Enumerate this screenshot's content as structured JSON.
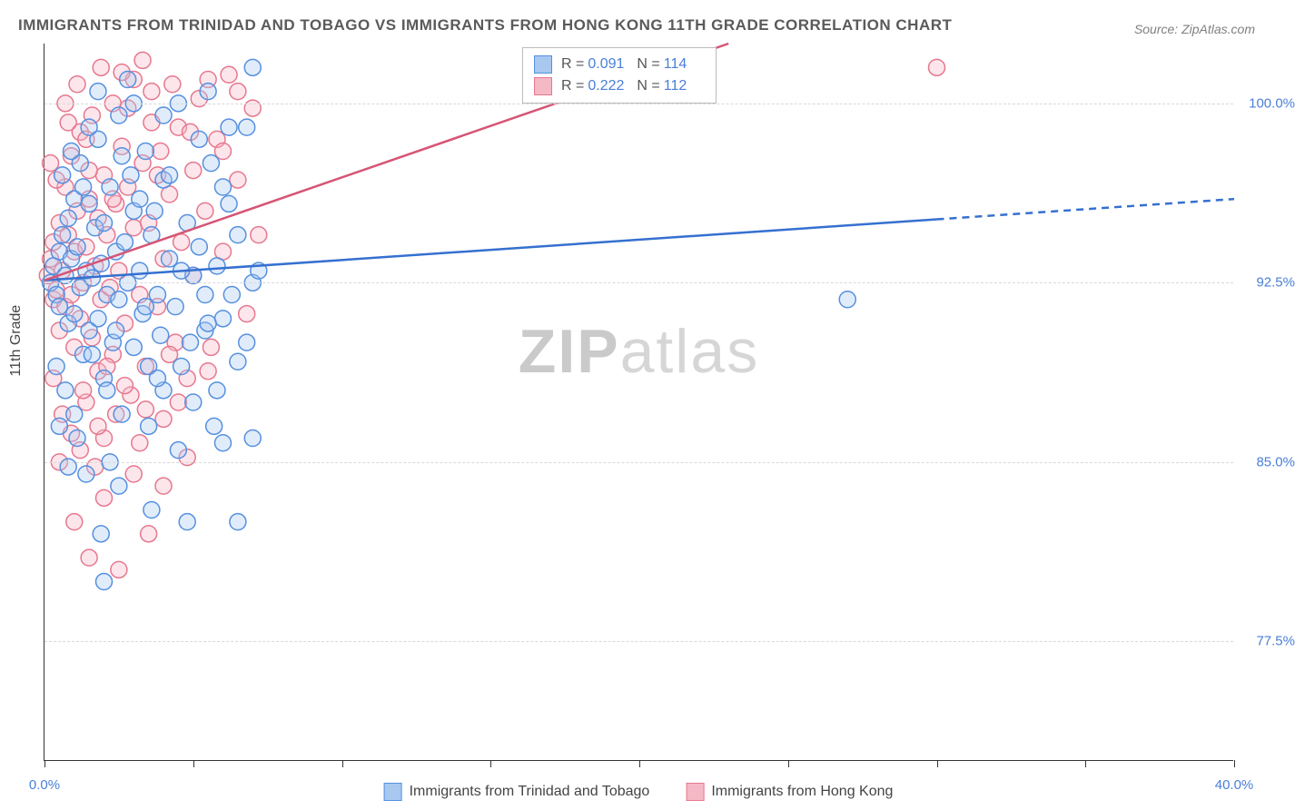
{
  "title": "IMMIGRANTS FROM TRINIDAD AND TOBAGO VS IMMIGRANTS FROM HONG KONG 11TH GRADE CORRELATION CHART",
  "source": "Source: ZipAtlas.com",
  "watermark_a": "ZIP",
  "watermark_b": "atlas",
  "ylabel": "11th Grade",
  "chart": {
    "type": "scatter",
    "background_color": "#ffffff",
    "grid_color": "#d8d8d8",
    "axis_color": "#333333",
    "label_color": "#4a7fd8",
    "title_color": "#5a5a5a",
    "title_fontsize": 17,
    "label_fontsize": 16,
    "tick_fontsize": 15,
    "xlim": [
      0,
      40
    ],
    "ylim": [
      72.5,
      102.5
    ],
    "xticks": [
      0,
      5,
      10,
      15,
      20,
      25,
      30,
      35,
      40
    ],
    "xtick_labels": {
      "0": "0.0%",
      "40": "40.0%"
    },
    "yticks": [
      77.5,
      85.0,
      92.5,
      100.0
    ],
    "ytick_labels": [
      "77.5%",
      "85.0%",
      "92.5%",
      "100.0%"
    ],
    "marker_radius": 9,
    "marker_stroke_width": 1.5,
    "marker_fill_opacity": 0.35,
    "series": [
      {
        "name": "Immigrants from Trinidad and Tobago",
        "color_stroke": "#5590e0",
        "color_fill": "#a8c8f0",
        "R": "0.091",
        "N": "114",
        "trend": {
          "x1": 0,
          "y1": 92.6,
          "x2": 40,
          "y2": 96.0,
          "solid_until_x": 30,
          "color": "#3570d0",
          "width": 2.5
        },
        "points": [
          [
            0.2,
            92.5
          ],
          [
            0.3,
            93.2
          ],
          [
            0.4,
            92.0
          ],
          [
            0.5,
            93.8
          ],
          [
            0.5,
            91.5
          ],
          [
            0.6,
            94.5
          ],
          [
            0.7,
            92.8
          ],
          [
            0.8,
            95.2
          ],
          [
            0.8,
            90.8
          ],
          [
            0.9,
            93.5
          ],
          [
            1.0,
            96.0
          ],
          [
            1.0,
            91.2
          ],
          [
            1.1,
            94.0
          ],
          [
            1.2,
            92.3
          ],
          [
            1.2,
            97.5
          ],
          [
            1.3,
            89.5
          ],
          [
            1.4,
            93.0
          ],
          [
            1.5,
            95.8
          ],
          [
            1.5,
            90.5
          ],
          [
            1.6,
            92.7
          ],
          [
            1.7,
            94.8
          ],
          [
            1.8,
            91.0
          ],
          [
            1.8,
            98.5
          ],
          [
            1.9,
            93.3
          ],
          [
            2.0,
            88.5
          ],
          [
            2.0,
            95.0
          ],
          [
            2.1,
            92.0
          ],
          [
            2.2,
            96.5
          ],
          [
            2.3,
            90.0
          ],
          [
            2.4,
            93.8
          ],
          [
            2.5,
            99.5
          ],
          [
            2.5,
            91.8
          ],
          [
            2.6,
            87.0
          ],
          [
            2.7,
            94.2
          ],
          [
            2.8,
            92.5
          ],
          [
            2.9,
            97.0
          ],
          [
            3.0,
            89.8
          ],
          [
            3.0,
            95.5
          ],
          [
            3.2,
            93.0
          ],
          [
            3.3,
            91.2
          ],
          [
            3.4,
            98.0
          ],
          [
            3.5,
            86.5
          ],
          [
            3.6,
            94.5
          ],
          [
            3.8,
            92.0
          ],
          [
            3.9,
            90.3
          ],
          [
            4.0,
            96.8
          ],
          [
            4.0,
            88.0
          ],
          [
            4.2,
            93.5
          ],
          [
            4.4,
            91.5
          ],
          [
            4.5,
            100.0
          ],
          [
            4.6,
            89.0
          ],
          [
            4.8,
            95.0
          ],
          [
            5.0,
            92.8
          ],
          [
            5.0,
            87.5
          ],
          [
            5.2,
            94.0
          ],
          [
            5.4,
            90.5
          ],
          [
            5.6,
            97.5
          ],
          [
            5.8,
            93.2
          ],
          [
            6.0,
            85.8
          ],
          [
            6.0,
            91.0
          ],
          [
            6.2,
            95.8
          ],
          [
            6.5,
            89.2
          ],
          [
            6.8,
            99.0
          ],
          [
            7.0,
            92.5
          ],
          [
            7.0,
            86.0
          ],
          [
            27.0,
            91.8
          ],
          [
            2.0,
            80.0
          ],
          [
            3.5,
            89.0
          ],
          [
            4.5,
            85.5
          ],
          [
            5.5,
            90.8
          ],
          [
            1.0,
            87.0
          ],
          [
            2.5,
            84.0
          ],
          [
            6.5,
            94.5
          ],
          [
            7.0,
            101.5
          ],
          [
            1.5,
            99.0
          ],
          [
            2.8,
            101.0
          ],
          [
            4.0,
            99.5
          ],
          [
            5.5,
            100.5
          ],
          [
            3.0,
            100.0
          ],
          [
            1.8,
            100.5
          ],
          [
            0.6,
            97.0
          ],
          [
            0.9,
            98.0
          ],
          [
            1.3,
            96.5
          ],
          [
            2.2,
            85.0
          ],
          [
            3.8,
            88.5
          ],
          [
            4.8,
            82.5
          ],
          [
            5.8,
            88.0
          ],
          [
            6.5,
            82.5
          ],
          [
            0.4,
            89.0
          ],
          [
            0.7,
            88.0
          ],
          [
            1.1,
            86.0
          ],
          [
            1.6,
            89.5
          ],
          [
            2.4,
            90.5
          ],
          [
            3.2,
            96.0
          ],
          [
            4.2,
            97.0
          ],
          [
            5.2,
            98.5
          ],
          [
            6.2,
            99.0
          ],
          [
            1.4,
            84.5
          ],
          [
            3.6,
            83.0
          ],
          [
            0.8,
            84.8
          ],
          [
            2.6,
            97.8
          ],
          [
            3.4,
            91.5
          ],
          [
            4.6,
            93.0
          ],
          [
            5.4,
            92.0
          ],
          [
            6.0,
            96.5
          ],
          [
            6.8,
            90.0
          ],
          [
            7.2,
            93.0
          ],
          [
            1.9,
            82.0
          ],
          [
            0.5,
            86.5
          ],
          [
            2.1,
            88.0
          ],
          [
            3.7,
            95.5
          ],
          [
            4.9,
            90.0
          ],
          [
            5.7,
            86.5
          ],
          [
            6.3,
            92.0
          ]
        ]
      },
      {
        "name": "Immigrants from Hong Kong",
        "color_stroke": "#e6788f",
        "color_fill": "#f5b8c5",
        "R": "0.222",
        "N": "112",
        "trend": {
          "x1": 0,
          "y1": 92.6,
          "x2": 23,
          "y2": 102.5,
          "solid_until_x": 23,
          "color": "#d65575",
          "width": 2.5
        },
        "points": [
          [
            0.1,
            92.8
          ],
          [
            0.2,
            93.5
          ],
          [
            0.3,
            91.8
          ],
          [
            0.3,
            94.2
          ],
          [
            0.4,
            92.2
          ],
          [
            0.5,
            95.0
          ],
          [
            0.5,
            90.5
          ],
          [
            0.6,
            93.0
          ],
          [
            0.7,
            96.5
          ],
          [
            0.7,
            91.5
          ],
          [
            0.8,
            94.5
          ],
          [
            0.9,
            92.0
          ],
          [
            0.9,
            97.8
          ],
          [
            1.0,
            89.8
          ],
          [
            1.0,
            93.8
          ],
          [
            1.1,
            95.5
          ],
          [
            1.2,
            91.0
          ],
          [
            1.2,
            98.8
          ],
          [
            1.3,
            92.5
          ],
          [
            1.4,
            87.5
          ],
          [
            1.4,
            94.0
          ],
          [
            1.5,
            96.0
          ],
          [
            1.6,
            90.2
          ],
          [
            1.6,
            99.5
          ],
          [
            1.7,
            93.2
          ],
          [
            1.8,
            88.8
          ],
          [
            1.8,
            95.2
          ],
          [
            1.9,
            91.8
          ],
          [
            2.0,
            97.0
          ],
          [
            2.0,
            86.0
          ],
          [
            2.1,
            94.5
          ],
          [
            2.2,
            92.3
          ],
          [
            2.3,
            100.0
          ],
          [
            2.3,
            89.5
          ],
          [
            2.4,
            95.8
          ],
          [
            2.5,
            93.0
          ],
          [
            2.6,
            98.2
          ],
          [
            2.7,
            90.8
          ],
          [
            2.8,
            96.5
          ],
          [
            2.9,
            87.8
          ],
          [
            3.0,
            94.8
          ],
          [
            3.0,
            101.0
          ],
          [
            3.2,
            92.0
          ],
          [
            3.3,
            97.5
          ],
          [
            3.4,
            89.0
          ],
          [
            3.5,
            95.0
          ],
          [
            3.6,
            100.5
          ],
          [
            3.8,
            91.5
          ],
          [
            3.9,
            98.0
          ],
          [
            4.0,
            86.8
          ],
          [
            4.0,
            93.5
          ],
          [
            4.2,
            96.2
          ],
          [
            4.4,
            90.0
          ],
          [
            4.5,
            99.0
          ],
          [
            4.6,
            94.2
          ],
          [
            4.8,
            88.5
          ],
          [
            5.0,
            97.2
          ],
          [
            5.0,
            92.8
          ],
          [
            5.2,
            100.2
          ],
          [
            5.4,
            95.5
          ],
          [
            5.6,
            89.8
          ],
          [
            5.8,
            98.5
          ],
          [
            6.0,
            93.8
          ],
          [
            6.2,
            101.2
          ],
          [
            6.5,
            96.8
          ],
          [
            6.8,
            91.2
          ],
          [
            7.0,
            99.8
          ],
          [
            7.2,
            94.5
          ],
          [
            30.0,
            101.5
          ],
          [
            1.0,
            82.5
          ],
          [
            1.5,
            81.0
          ],
          [
            2.0,
            83.5
          ],
          [
            2.5,
            80.5
          ],
          [
            3.0,
            84.5
          ],
          [
            3.5,
            82.0
          ],
          [
            0.5,
            85.0
          ],
          [
            1.2,
            85.5
          ],
          [
            1.8,
            86.5
          ],
          [
            2.4,
            87.0
          ],
          [
            3.2,
            85.8
          ],
          [
            4.0,
            84.0
          ],
          [
            4.5,
            87.5
          ],
          [
            0.3,
            88.5
          ],
          [
            0.6,
            87.0
          ],
          [
            0.9,
            86.2
          ],
          [
            1.3,
            88.0
          ],
          [
            1.7,
            84.8
          ],
          [
            2.1,
            89.0
          ],
          [
            2.7,
            88.2
          ],
          [
            3.4,
            87.2
          ],
          [
            4.2,
            89.5
          ],
          [
            4.8,
            85.2
          ],
          [
            5.5,
            88.8
          ],
          [
            0.4,
            96.8
          ],
          [
            0.8,
            99.2
          ],
          [
            1.1,
            100.8
          ],
          [
            1.5,
            97.2
          ],
          [
            1.9,
            101.5
          ],
          [
            2.3,
            96.0
          ],
          [
            2.8,
            99.8
          ],
          [
            3.3,
            101.8
          ],
          [
            3.8,
            97.0
          ],
          [
            4.3,
            100.8
          ],
          [
            4.9,
            98.8
          ],
          [
            5.5,
            101.0
          ],
          [
            6.0,
            98.0
          ],
          [
            6.5,
            100.5
          ],
          [
            0.2,
            97.5
          ],
          [
            0.7,
            100.0
          ],
          [
            1.4,
            98.5
          ],
          [
            2.6,
            101.3
          ],
          [
            3.6,
            99.2
          ]
        ]
      }
    ]
  },
  "legend": {
    "r_label": "R =",
    "n_label": "N ="
  }
}
